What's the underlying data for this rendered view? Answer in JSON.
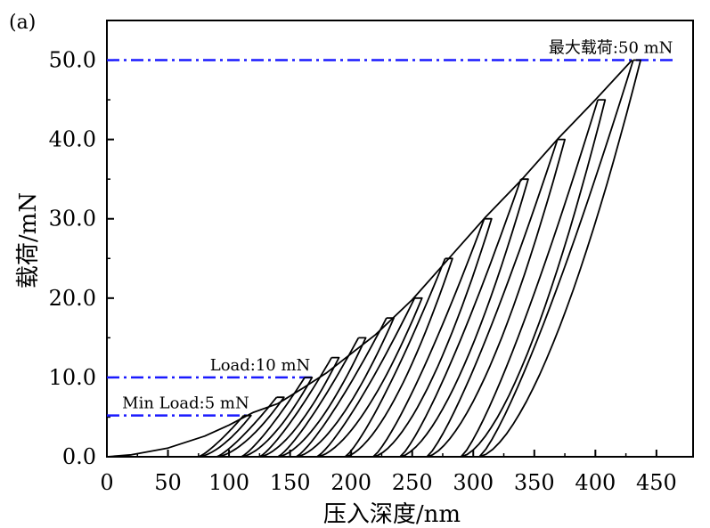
{
  "chart_data": {
    "type": "line",
    "panel_label": "(a)",
    "xlabel": "压入深度/nm",
    "ylabel": "载荷/mN",
    "xlim": [
      0,
      480
    ],
    "ylim": [
      0,
      55
    ],
    "x_ticks": [
      0,
      50,
      100,
      150,
      200,
      250,
      300,
      350,
      400,
      450
    ],
    "x_tick_labels": [
      "0",
      "50",
      "100",
      "150",
      "200",
      "250",
      "300",
      "350",
      "400",
      "450"
    ],
    "y_ticks": [
      0,
      10,
      20,
      30,
      40,
      50
    ],
    "y_tick_labels": [
      "0.0",
      "10.0",
      "20.0",
      "30.0",
      "40.0",
      "50.0"
    ],
    "grid": false,
    "reference_lines": [
      {
        "y": 50,
        "x_range": [
          0,
          465
        ],
        "color": "#1a1aff",
        "label": "最大载荷:50 mN"
      },
      {
        "y": 10,
        "x_range": [
          0,
          168
        ],
        "color": "#1a1aff",
        "label": "Load:10 mN"
      },
      {
        "y": 5.2,
        "x_range": [
          0,
          118
        ],
        "color": "#1a1aff",
        "label": "Min Load:5 mN"
      }
    ],
    "loading_curve": [
      [
        0,
        0
      ],
      [
        20,
        0.25
      ],
      [
        50,
        1.1
      ],
      [
        80,
        2.6
      ],
      [
        100,
        4.0
      ],
      [
        120,
        5.6
      ],
      [
        140,
        6.7
      ],
      [
        160,
        8.6
      ],
      [
        180,
        10.6
      ],
      [
        200,
        13.0
      ],
      [
        220,
        15.4
      ],
      [
        250,
        19.8
      ],
      [
        280,
        25.0
      ],
      [
        310,
        30.2
      ],
      [
        340,
        35.0
      ],
      [
        370,
        40.2
      ],
      [
        400,
        45.0
      ],
      [
        430,
        50.0
      ]
    ],
    "cycles": [
      {
        "peak": [
          118,
          5.2
        ],
        "residual_depth": 75
      },
      {
        "peak": [
          145,
          7.5
        ],
        "residual_depth": 90
      },
      {
        "peak": [
          168,
          10.0
        ],
        "residual_depth": 110
      },
      {
        "peak": [
          190,
          12.5
        ],
        "residual_depth": 125
      },
      {
        "peak": [
          212,
          15.0
        ],
        "residual_depth": 140
      },
      {
        "peak": [
          235,
          17.5
        ],
        "residual_depth": 155
      },
      {
        "peak": [
          258,
          20.0
        ],
        "residual_depth": 172
      },
      {
        "peak": [
          283,
          25.0
        ],
        "residual_depth": 195
      },
      {
        "peak": [
          315,
          30.0
        ],
        "residual_depth": 218
      },
      {
        "peak": [
          345,
          35.0
        ],
        "residual_depth": 240
      },
      {
        "peak": [
          375,
          40.0
        ],
        "residual_depth": 262
      },
      {
        "peak": [
          408,
          45.0
        ],
        "residual_depth": 290
      },
      {
        "peak": [
          437,
          50.0
        ],
        "residual_depth": 305
      }
    ]
  }
}
